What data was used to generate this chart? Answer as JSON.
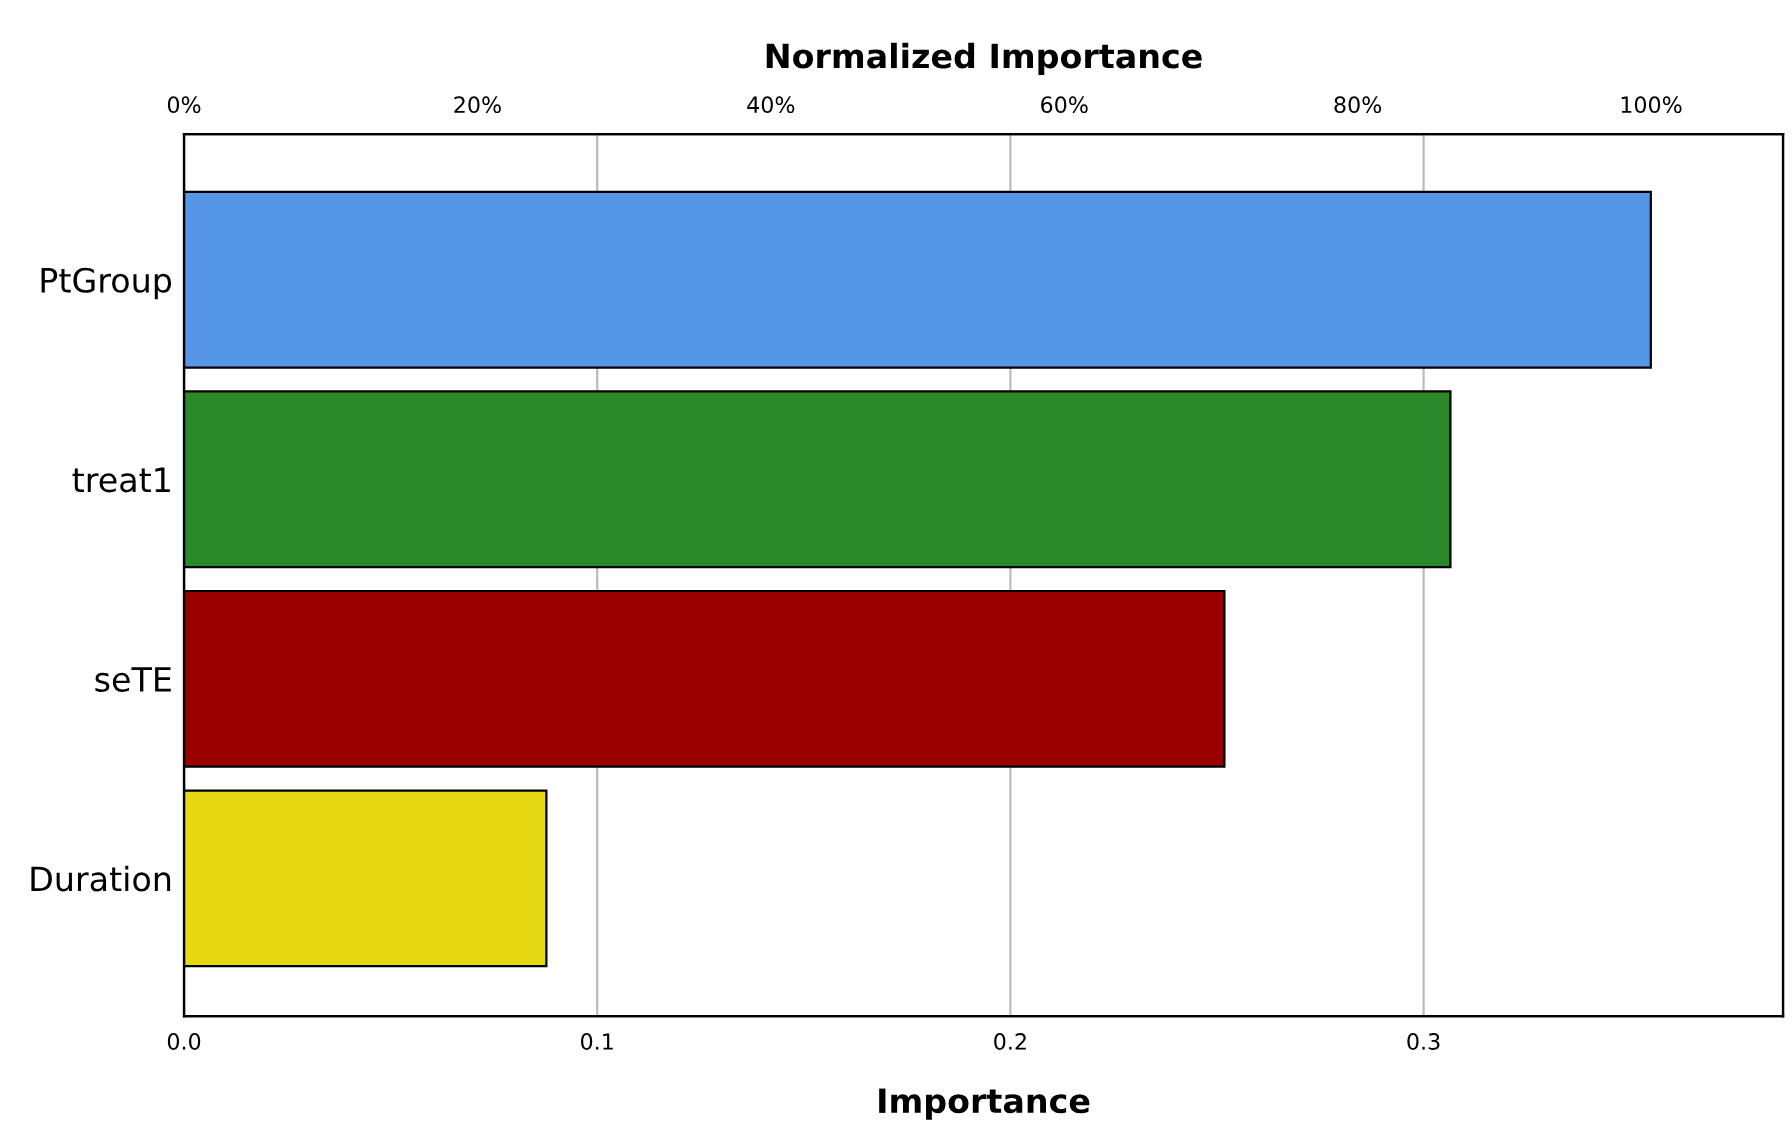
{
  "chart_data": {
    "type": "bar",
    "orientation": "horizontal",
    "xlabel": "Importance",
    "x2label": "Normalized Importance",
    "categories": [
      "PtGroup",
      "treat1",
      "seTE",
      "Duration"
    ],
    "values": [
      0.355,
      0.3065,
      0.2518,
      0.0877
    ],
    "colors": [
      "#5596e6",
      "#2a8a2a",
      "#990000",
      "#e5d812"
    ],
    "xlim": [
      0,
      0.387
    ],
    "xticks": [
      {
        "value": 0,
        "label": "0.0"
      },
      0.1,
      0.2,
      0.3
    ],
    "x2lim": [
      0,
      109
    ],
    "x2ticks": [
      {
        "value": 0,
        "label": "0%"
      },
      {
        "value": 20,
        "label": "20%"
      },
      {
        "value": 40,
        "label": "40%"
      },
      {
        "value": 60,
        "label": "60%"
      },
      {
        "value": 80,
        "label": "80%"
      },
      {
        "value": 100,
        "label": "100%"
      }
    ],
    "grid": "x",
    "legend": false
  }
}
